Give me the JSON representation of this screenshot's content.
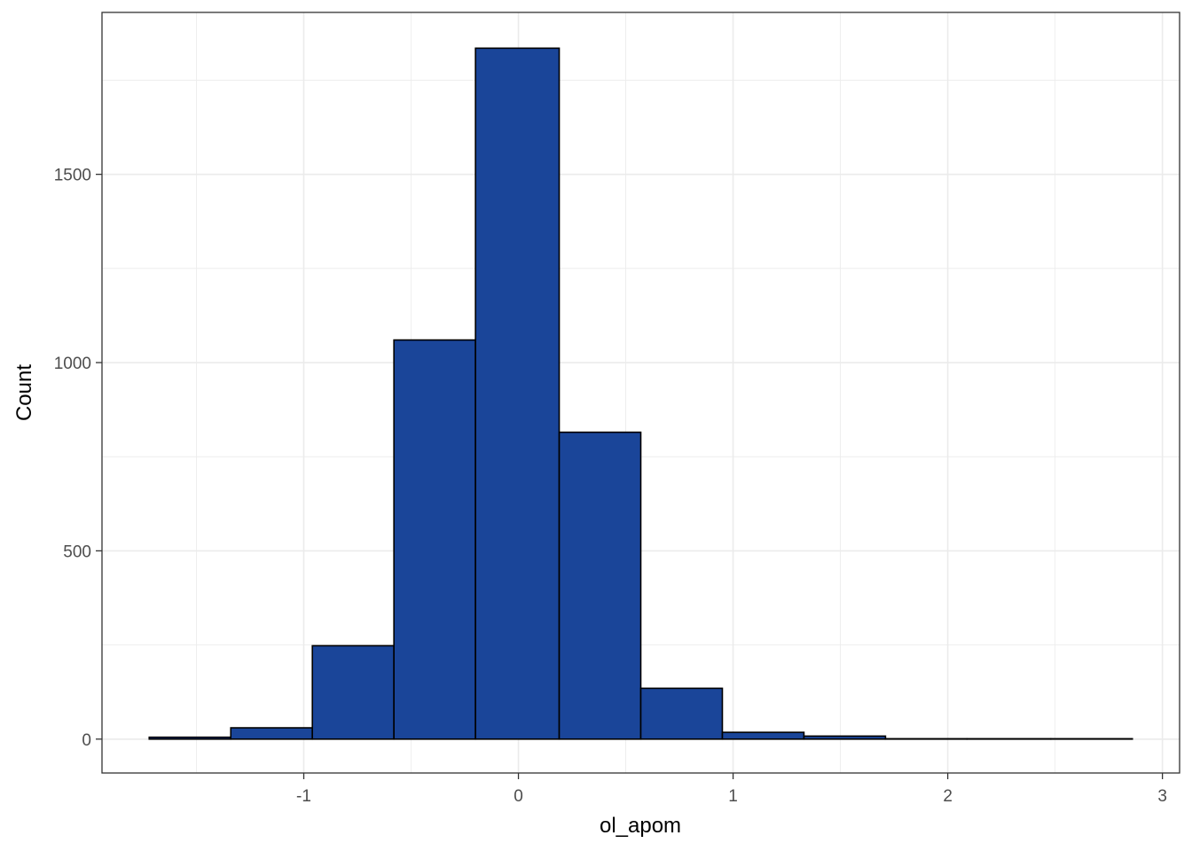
{
  "chart_data": {
    "type": "bar",
    "subtype": "histogram",
    "title": "",
    "xlabel": "ol_apom",
    "ylabel": "Count",
    "xlim": [
      -1.94,
      3.08
    ],
    "ylim": [
      -90,
      1930
    ],
    "x_ticks": [
      -1,
      0,
      1,
      2,
      3
    ],
    "x_tick_labels": [
      "-1",
      "0",
      "1",
      "2",
      "3"
    ],
    "y_ticks": [
      0,
      500,
      1000,
      1500
    ],
    "y_tick_labels": [
      "0",
      "500",
      "1000",
      "1500"
    ],
    "grid": true,
    "legend": "none",
    "fill_color": "#1A4599",
    "edge_color": "#000000",
    "bins": [
      {
        "x0": -1.72,
        "x1": -1.34,
        "count": 5
      },
      {
        "x0": -1.34,
        "x1": -0.96,
        "count": 30
      },
      {
        "x0": -0.96,
        "x1": -0.58,
        "count": 248
      },
      {
        "x0": -0.58,
        "x1": -0.2,
        "count": 1060
      },
      {
        "x0": -0.2,
        "x1": 0.19,
        "count": 1835
      },
      {
        "x0": 0.19,
        "x1": 0.57,
        "count": 815
      },
      {
        "x0": 0.57,
        "x1": 0.95,
        "count": 135
      },
      {
        "x0": 0.95,
        "x1": 1.33,
        "count": 18
      },
      {
        "x0": 1.33,
        "x1": 1.71,
        "count": 8
      },
      {
        "x0": 1.71,
        "x1": 2.09,
        "count": 1
      },
      {
        "x0": 2.09,
        "x1": 2.48,
        "count": 1
      },
      {
        "x0": 2.48,
        "x1": 2.86,
        "count": 1
      }
    ]
  }
}
